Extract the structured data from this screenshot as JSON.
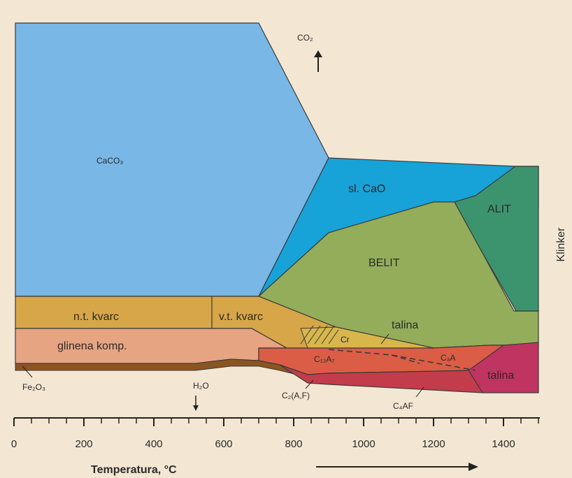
{
  "colors": {
    "background": "#f3e7d3",
    "caco3": "#79b7e6",
    "free_cao": "#17a2d8",
    "belit": "#93ad5a",
    "alit": "#3c946f",
    "kvarc": "#d7a648",
    "clay": "#e6a482",
    "fe2o3": "#8a5521",
    "melt_zone": "#d7b64b",
    "aluminate": "#dc5d45",
    "ferrite": "#c33c4b",
    "talina_right": "#c03461",
    "outline": "#3a3a3a"
  },
  "labels": {
    "caco3": "CaCO₃",
    "co2": "CO₂",
    "sl_cao": "sl. CaO",
    "alit": "ALIT",
    "belit": "BELIT",
    "klinker": "Klinker",
    "nt_kvarc": "n.t. kvarc",
    "vt_kvarc": "v.t. kvarc",
    "talina_upper": "talina",
    "cr": "Cr",
    "glinena": "glinena komp.",
    "c12a7": "C₁₂A₇",
    "c3a": "C₃A",
    "talina_right": "talina",
    "fe2o3": "Fe₂O₃",
    "h2o": "H₂O",
    "c2af": "C₂(A,F)",
    "c4af": "C₄AF"
  },
  "axis": {
    "title": "Temperatura, °C",
    "tick_labels": [
      "0",
      "200",
      "400",
      "600",
      "800",
      "1000",
      "1200",
      "1400"
    ]
  }
}
